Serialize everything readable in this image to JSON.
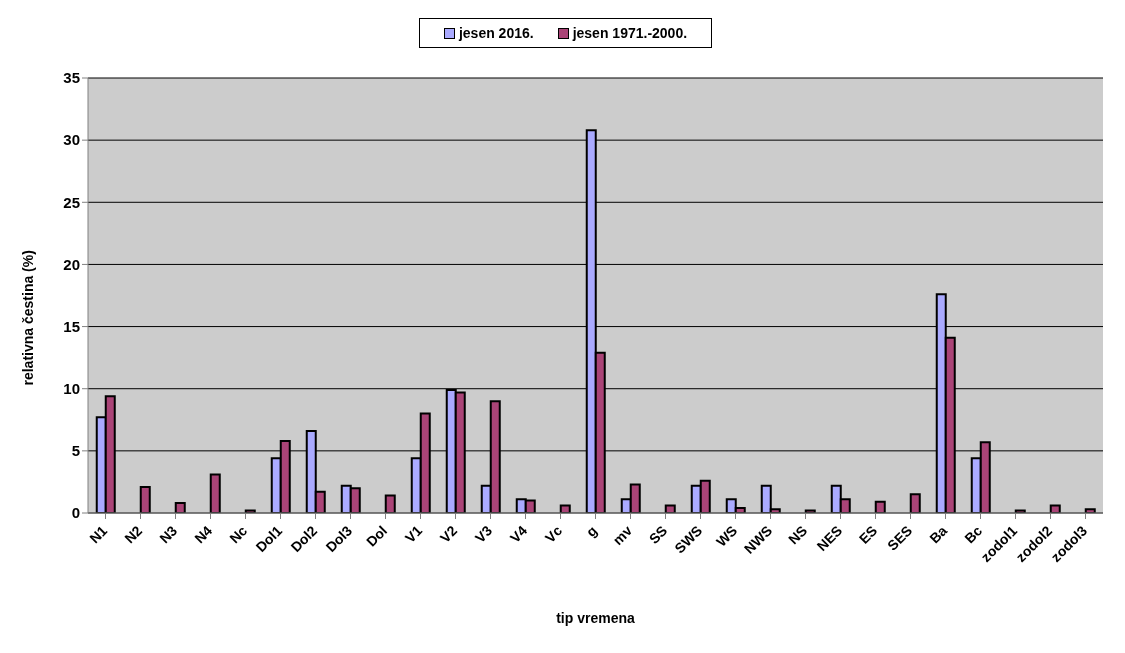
{
  "chart_data": {
    "type": "bar",
    "xlabel": "tip vremena",
    "ylabel": "relativna čestina (%)",
    "categories": [
      "N1",
      "N2",
      "N3",
      "N4",
      "Nc",
      "Dol1",
      "Dol2",
      "Dol3",
      "Dol",
      "V1",
      "V2",
      "V3",
      "V4",
      "Vc",
      "g",
      "mv",
      "SS",
      "SWS",
      "WS",
      "NWS",
      "NS",
      "NES",
      "ES",
      "SES",
      "Ba",
      "Bc",
      "zodol1",
      "zodol2",
      "zodol3"
    ],
    "series": [
      {
        "name": "jesen 2016.",
        "color": "#aaaaff",
        "values": [
          7.7,
          0,
          0,
          0,
          0,
          4.4,
          6.6,
          2.2,
          0,
          4.4,
          9.9,
          2.2,
          1.1,
          0,
          30.8,
          1.1,
          0,
          2.2,
          1.1,
          2.2,
          0,
          2.2,
          0,
          0,
          17.6,
          4.4,
          0,
          0,
          0
        ]
      },
      {
        "name": "jesen 1971.-2000.",
        "color": "#aa4477",
        "values": [
          9.4,
          2.1,
          0.8,
          3.1,
          0.2,
          5.8,
          1.7,
          2.0,
          1.4,
          8.0,
          9.7,
          9.0,
          1.0,
          0.6,
          12.9,
          2.3,
          0.6,
          2.6,
          0.4,
          0.3,
          0.2,
          1.1,
          0.9,
          1.5,
          14.1,
          5.7,
          0.2,
          0.6,
          0.3
        ]
      }
    ],
    "ylim": [
      0,
      35
    ],
    "yticks": [
      0,
      5,
      10,
      15,
      20,
      25,
      30,
      35
    ],
    "grid": "y",
    "legend": "top"
  }
}
